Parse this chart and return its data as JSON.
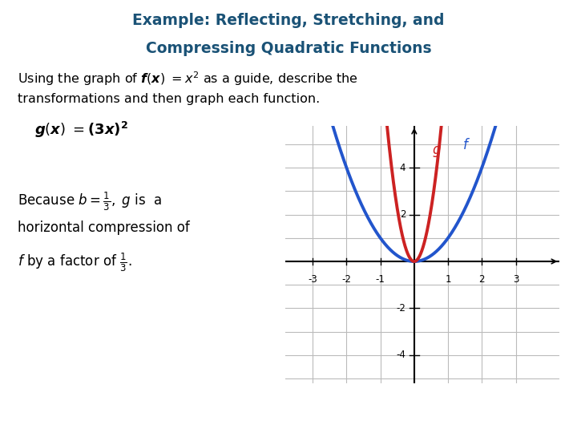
{
  "title_line1": "Example: Reflecting, Stretching, and",
  "title_line2": "Compressing Quadratic Functions",
  "title_color": "#1A5276",
  "f_color": "#2255CC",
  "g_color": "#CC2222",
  "graph_bg": "#E8E8E8",
  "grid_color": "#BBBBBB",
  "axis_color": "#000000",
  "x_ticks": [
    -3,
    -2,
    -1,
    1,
    2,
    3
  ],
  "y_ticks": [
    -4,
    -2,
    2,
    4
  ],
  "graph_xlim": [
    -3.8,
    4.3
  ],
  "graph_ylim": [
    -5.2,
    5.8
  ]
}
